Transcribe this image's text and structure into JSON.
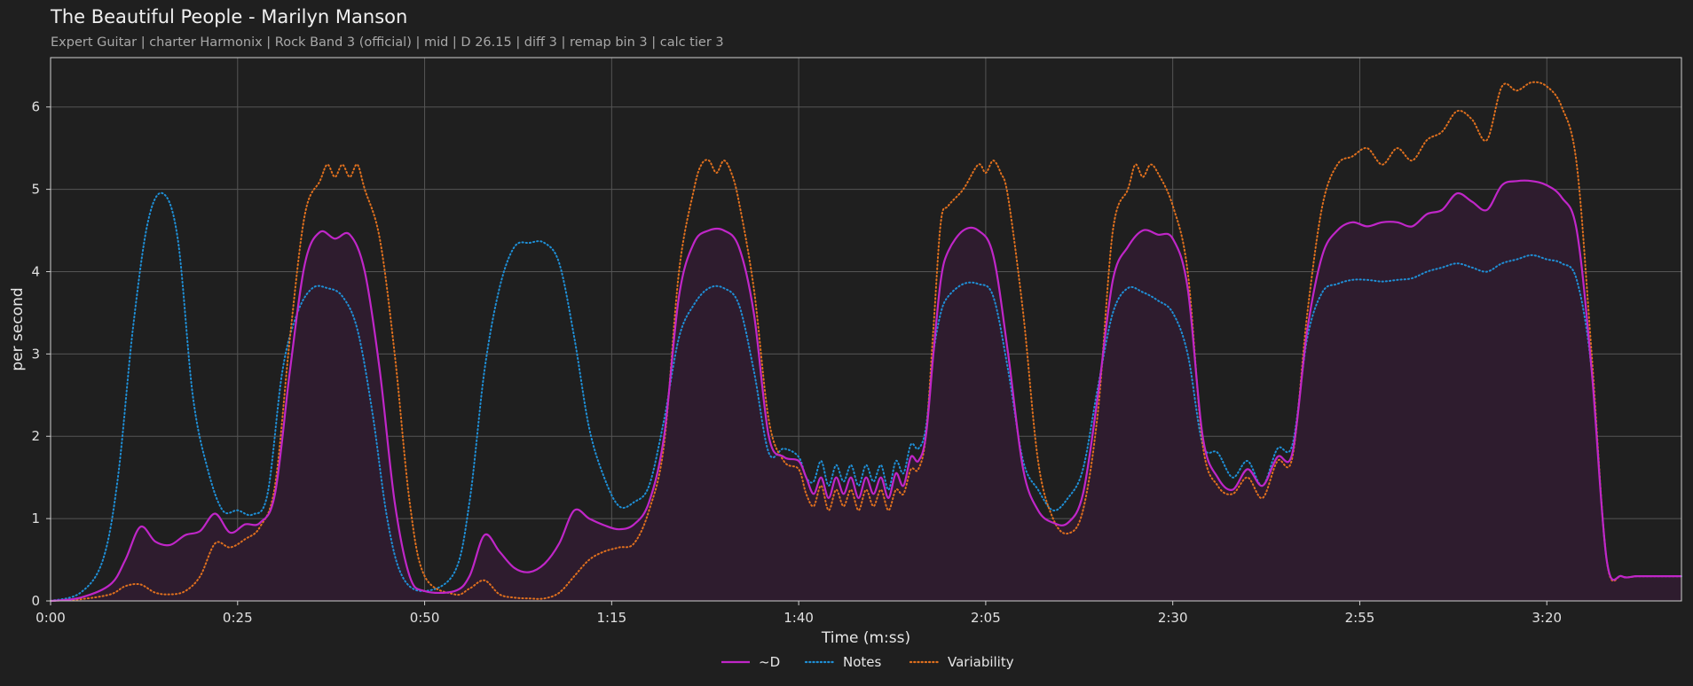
{
  "header": {
    "title": "The Beautiful People - Marilyn Manson",
    "subtitle": "Expert Guitar  |  charter Harmonix  |  Rock Band 3 (official)  |  mid  |  D 26.15  |  diff 3  |  remap bin 3  |  calc tier 3"
  },
  "chart_data": {
    "type": "line",
    "title": "The Beautiful People - Marilyn Manson",
    "xlabel": "Time (m:ss)",
    "ylabel": "per second",
    "xlim": [
      0,
      218
    ],
    "ylim": [
      0,
      6.6
    ],
    "x_ticks": [
      0,
      25,
      50,
      75,
      100,
      125,
      150,
      175,
      200
    ],
    "x_tick_labels": [
      "0:00",
      "0:25",
      "0:50",
      "1:15",
      "1:40",
      "2:05",
      "2:30",
      "2:55",
      "3:20"
    ],
    "y_ticks": [
      0,
      1,
      2,
      3,
      4,
      5,
      6
    ],
    "y_tick_labels": [
      "0",
      "1",
      "2",
      "3",
      "4",
      "5",
      "6"
    ],
    "grid": true,
    "legend": "bottom-center",
    "colors": {
      "d": "#c026c8",
      "notes": "#1f8fd6",
      "variability": "#e0701e",
      "fill": "#2e1c2e",
      "background": "#1f1f1f",
      "grid": "#555555"
    },
    "series": [
      {
        "name": "~D",
        "style": "solid",
        "fill": true,
        "x": [
          0,
          4,
          8,
          10,
          12,
          14,
          16,
          18,
          20,
          22,
          24,
          26,
          28,
          30,
          32,
          34,
          36,
          38,
          40,
          42,
          44,
          46,
          48,
          50,
          54,
          56,
          58,
          60,
          62,
          64,
          66,
          68,
          70,
          72,
          74,
          76,
          78,
          80,
          82,
          84,
          86,
          88,
          90,
          92,
          94,
          96,
          98,
          100,
          101,
          102,
          103,
          104,
          105,
          106,
          107,
          108,
          109,
          110,
          111,
          112,
          113,
          114,
          115,
          116,
          117,
          118,
          119,
          120,
          122,
          124,
          126,
          128,
          130,
          132,
          134,
          136,
          138,
          140,
          142,
          144,
          146,
          148,
          150,
          152,
          154,
          156,
          158,
          160,
          162,
          164,
          166,
          168,
          170,
          172,
          174,
          176,
          178,
          180,
          182,
          184,
          186,
          188,
          190,
          192,
          194,
          196,
          198,
          200,
          202,
          204,
          206,
          208,
          210,
          212,
          214,
          216,
          218
        ],
        "values": [
          0.0,
          0.04,
          0.2,
          0.5,
          0.9,
          0.72,
          0.68,
          0.8,
          0.85,
          1.06,
          0.83,
          0.93,
          0.95,
          1.3,
          2.8,
          4.1,
          4.48,
          4.4,
          4.45,
          4.0,
          2.8,
          1.2,
          0.3,
          0.12,
          0.12,
          0.3,
          0.8,
          0.6,
          0.4,
          0.35,
          0.45,
          0.7,
          1.1,
          1.0,
          0.92,
          0.87,
          0.93,
          1.2,
          2.0,
          3.7,
          4.35,
          4.5,
          4.5,
          4.3,
          3.5,
          2.0,
          1.75,
          1.7,
          1.5,
          1.3,
          1.5,
          1.25,
          1.5,
          1.3,
          1.5,
          1.25,
          1.5,
          1.3,
          1.5,
          1.25,
          1.55,
          1.4,
          1.75,
          1.7,
          2.0,
          3.0,
          3.9,
          4.25,
          4.5,
          4.5,
          4.2,
          3.0,
          1.6,
          1.1,
          0.95,
          0.95,
          1.3,
          2.5,
          3.9,
          4.3,
          4.5,
          4.45,
          4.4,
          3.8,
          2.0,
          1.5,
          1.35,
          1.6,
          1.4,
          1.75,
          1.8,
          3.3,
          4.2,
          4.5,
          4.6,
          4.55,
          4.6,
          4.6,
          4.55,
          4.7,
          4.75,
          4.95,
          4.85,
          4.75,
          5.05,
          5.1,
          5.1,
          5.05,
          4.9,
          4.5,
          2.8,
          0.5,
          0.3,
          0.3,
          0.3,
          0.3,
          0.3
        ]
      },
      {
        "name": "Notes",
        "style": "dotted",
        "x": [
          0,
          4,
          7,
          9,
          11,
          13,
          15,
          17,
          19,
          21,
          23,
          25,
          27,
          29,
          31,
          33,
          35,
          37,
          39,
          41,
          43,
          45,
          47,
          50,
          54,
          56,
          58,
          60,
          62,
          64,
          66,
          68,
          70,
          72,
          74,
          76,
          78,
          80,
          82,
          84,
          86,
          88,
          90,
          92,
          94,
          96,
          98,
          100,
          101,
          102,
          103,
          104,
          105,
          106,
          107,
          108,
          109,
          110,
          111,
          112,
          113,
          114,
          115,
          116,
          117,
          118,
          119,
          120,
          122,
          124,
          126,
          128,
          130,
          132,
          134,
          136,
          138,
          140,
          142,
          144,
          146,
          148,
          150,
          152,
          154,
          156,
          158,
          160,
          162,
          164,
          166,
          168,
          170,
          172,
          174,
          176,
          178,
          180,
          182,
          184,
          186,
          188,
          190,
          192,
          194,
          196,
          198,
          200,
          202,
          204,
          206,
          208,
          210,
          212,
          214,
          216,
          218
        ],
        "values": [
          0.0,
          0.1,
          0.5,
          1.5,
          3.3,
          4.6,
          4.95,
          4.4,
          2.5,
          1.6,
          1.1,
          1.1,
          1.05,
          1.3,
          2.8,
          3.5,
          3.8,
          3.8,
          3.7,
          3.3,
          2.3,
          1.0,
          0.3,
          0.12,
          0.35,
          1.2,
          2.8,
          3.8,
          4.3,
          4.35,
          4.35,
          4.1,
          3.2,
          2.1,
          1.5,
          1.15,
          1.2,
          1.4,
          2.2,
          3.2,
          3.6,
          3.8,
          3.8,
          3.6,
          2.8,
          1.8,
          1.85,
          1.75,
          1.5,
          1.45,
          1.7,
          1.4,
          1.65,
          1.45,
          1.65,
          1.4,
          1.65,
          1.45,
          1.65,
          1.35,
          1.7,
          1.55,
          1.9,
          1.85,
          2.1,
          3.0,
          3.5,
          3.7,
          3.85,
          3.85,
          3.7,
          2.8,
          1.7,
          1.35,
          1.1,
          1.25,
          1.6,
          2.6,
          3.5,
          3.8,
          3.75,
          3.65,
          3.5,
          3.0,
          1.9,
          1.8,
          1.5,
          1.7,
          1.4,
          1.85,
          1.9,
          3.2,
          3.75,
          3.85,
          3.9,
          3.9,
          3.88,
          3.9,
          3.92,
          4.0,
          4.05,
          4.1,
          4.05,
          4.0,
          4.1,
          4.15,
          4.2,
          4.15,
          4.1,
          3.9,
          2.8,
          0.5,
          0.3,
          0.3,
          0.3,
          0.3,
          0.3
        ]
      },
      {
        "name": "Variability",
        "style": "dotted",
        "x": [
          0,
          4,
          8,
          10,
          12,
          14,
          16,
          18,
          20,
          22,
          24,
          26,
          28,
          30,
          32,
          34,
          36,
          37,
          38,
          39,
          40,
          41,
          42,
          44,
          46,
          48,
          50,
          54,
          56,
          58,
          60,
          62,
          64,
          66,
          68,
          70,
          72,
          74,
          76,
          78,
          80,
          82,
          84,
          86,
          87,
          88,
          89,
          90,
          91,
          92,
          94,
          96,
          98,
          100,
          101,
          102,
          103,
          104,
          105,
          106,
          107,
          108,
          109,
          110,
          111,
          112,
          113,
          114,
          115,
          116,
          117,
          118,
          119,
          120,
          122,
          124,
          125,
          126,
          127,
          128,
          130,
          132,
          134,
          136,
          138,
          140,
          142,
          144,
          145,
          146,
          147,
          148,
          150,
          152,
          154,
          156,
          158,
          160,
          162,
          164,
          166,
          168,
          170,
          172,
          174,
          176,
          178,
          180,
          182,
          184,
          186,
          188,
          190,
          192,
          194,
          196,
          198,
          200,
          202,
          204,
          206,
          208,
          210,
          212,
          214,
          216,
          218
        ],
        "values": [
          0.0,
          0.02,
          0.08,
          0.18,
          0.2,
          0.1,
          0.08,
          0.12,
          0.3,
          0.7,
          0.65,
          0.75,
          0.9,
          1.4,
          3.2,
          4.7,
          5.1,
          5.3,
          5.15,
          5.3,
          5.15,
          5.3,
          5.0,
          4.4,
          3.0,
          1.2,
          0.3,
          0.08,
          0.15,
          0.25,
          0.08,
          0.04,
          0.03,
          0.03,
          0.1,
          0.3,
          0.5,
          0.6,
          0.65,
          0.7,
          1.1,
          1.9,
          4.0,
          5.0,
          5.3,
          5.35,
          5.2,
          5.35,
          5.2,
          4.85,
          3.8,
          2.2,
          1.7,
          1.6,
          1.3,
          1.15,
          1.4,
          1.1,
          1.35,
          1.15,
          1.35,
          1.1,
          1.35,
          1.15,
          1.35,
          1.1,
          1.35,
          1.3,
          1.6,
          1.6,
          2.0,
          3.3,
          4.6,
          4.8,
          5.0,
          5.3,
          5.2,
          5.35,
          5.2,
          4.9,
          3.5,
          1.7,
          1.0,
          0.82,
          1.1,
          2.3,
          4.5,
          5.0,
          5.3,
          5.15,
          5.3,
          5.2,
          4.8,
          4.0,
          1.9,
          1.4,
          1.3,
          1.5,
          1.25,
          1.7,
          1.75,
          3.5,
          4.8,
          5.3,
          5.4,
          5.5,
          5.3,
          5.5,
          5.35,
          5.6,
          5.7,
          5.95,
          5.85,
          5.6,
          6.25,
          6.2,
          6.3,
          6.25,
          6.0,
          5.3,
          3.0,
          0.5,
          0.3,
          0.3,
          0.3,
          0.3,
          0.3
        ]
      }
    ]
  }
}
